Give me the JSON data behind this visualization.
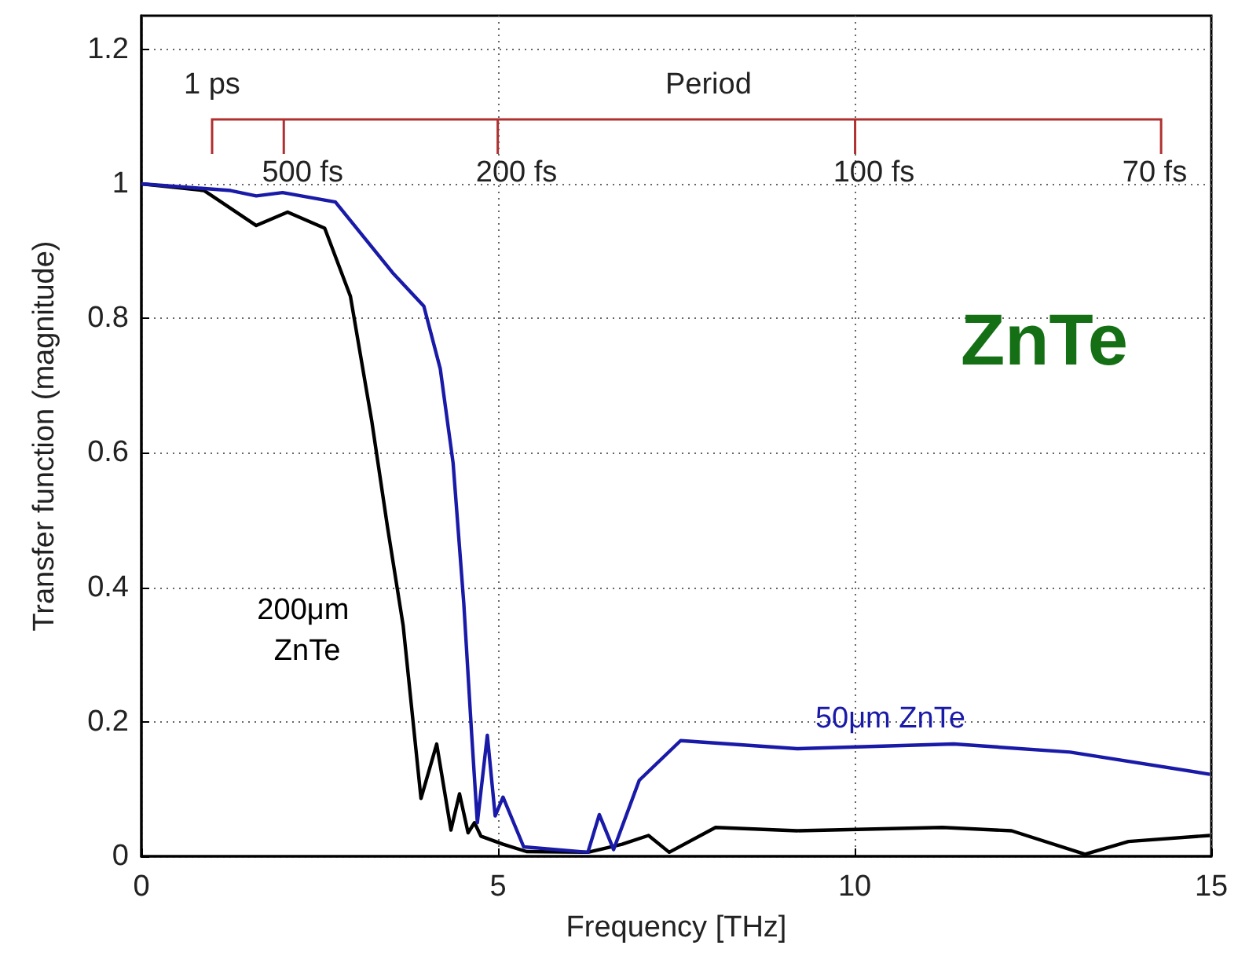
{
  "chart_data": {
    "type": "line",
    "title": "ZnTe",
    "xlabel": "Frequency [THz]",
    "ylabel": "Transfer function (magnitude)",
    "xlim": [
      0,
      15
    ],
    "xticks": [
      0,
      5,
      10,
      15
    ],
    "ylim": [
      0,
      1.25
    ],
    "yticks": [
      0,
      0.2,
      0.4,
      0.6,
      0.8,
      1,
      1.2
    ],
    "grid": true,
    "legend": false,
    "marker": "none",
    "line_style": "solid",
    "series": [
      {
        "name": "200μm ZnTe",
        "color": "#000000",
        "x": [
          0,
          0.88,
          1.61,
          2.05,
          2.57,
          2.93,
          3.23,
          3.45,
          3.67,
          3.92,
          4.14,
          4.34,
          4.46,
          4.58,
          4.67,
          4.76,
          5.07,
          5.4,
          6.26,
          6.74,
          7.11,
          7.4,
          8.05,
          9.19,
          11.23,
          12.2,
          13.23,
          13.84,
          14.98
        ],
        "values": [
          1,
          0.99,
          0.938,
          0.958,
          0.934,
          0.833,
          0.647,
          0.49,
          0.343,
          0.086,
          0.167,
          0.039,
          0.093,
          0.035,
          0.05,
          0.03,
          0.018,
          0.007,
          0.006,
          0.018,
          0.031,
          0.006,
          0.043,
          0.038,
          0.043,
          0.038,
          0.003,
          0.022,
          0.031
        ]
      },
      {
        "name": "50μm ZnTe",
        "color": "#1a1aa8",
        "x": [
          0,
          1.25,
          1.61,
          1.98,
          2.72,
          3.52,
          3.96,
          4.19,
          4.37,
          4.52,
          4.63,
          4.71,
          4.85,
          4.96,
          5.07,
          5.36,
          6.26,
          6.42,
          6.62,
          6.98,
          7.56,
          9.19,
          11.39,
          13.02,
          14.98
        ],
        "values": [
          1,
          0.99,
          0.982,
          0.987,
          0.973,
          0.868,
          0.818,
          0.725,
          0.585,
          0.376,
          0.182,
          0.05,
          0.18,
          0.06,
          0.088,
          0.014,
          0.006,
          0.062,
          0.01,
          0.113,
          0.172,
          0.16,
          0.167,
          0.155,
          0.122
        ]
      }
    ],
    "annotations": [
      "Period",
      "1 ps",
      "500 fs",
      "200 fs",
      "100 fs",
      "70 fs"
    ]
  }
}
